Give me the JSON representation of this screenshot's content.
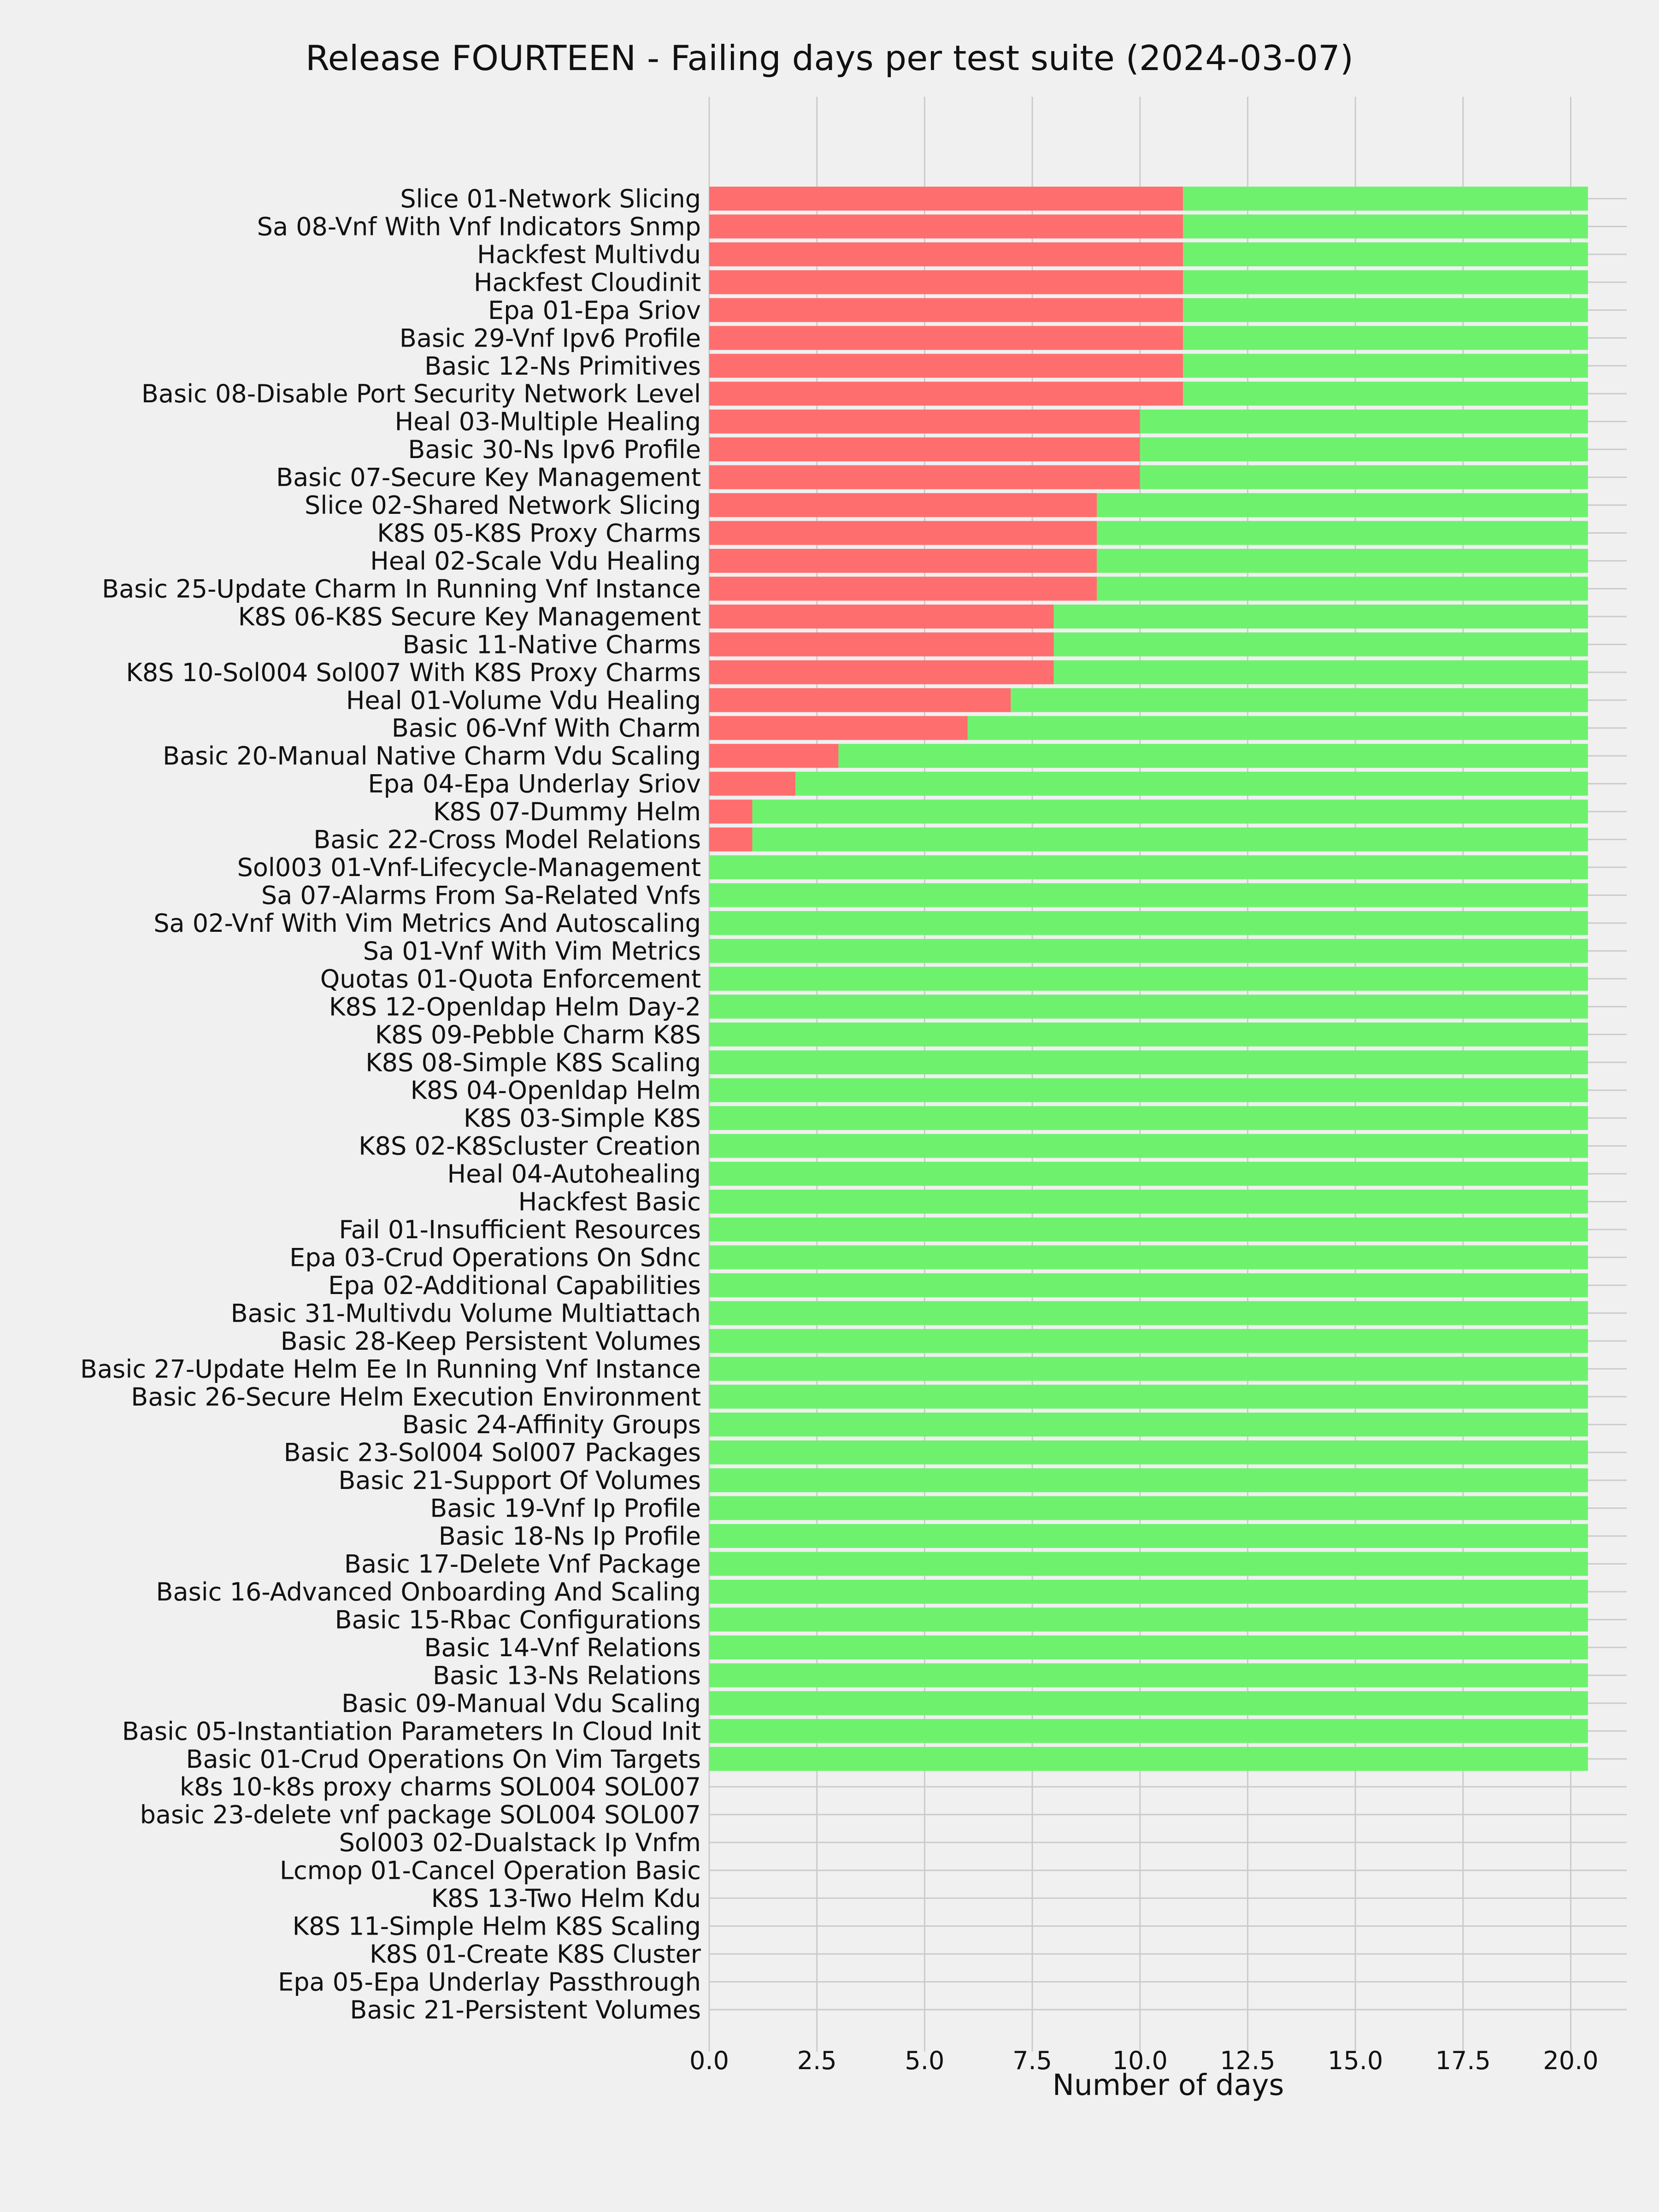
{
  "chart_data": {
    "type": "bar",
    "orientation": "horizontal",
    "stacked": true,
    "title": "Release FOURTEEN - Failing days per test suite (2024-03-07)",
    "xlabel": "Number of days",
    "ylabel": "",
    "xlim": [
      0,
      21.3
    ],
    "xticks": [
      "0.0",
      "2.5",
      "5.0",
      "7.5",
      "10.0",
      "12.5",
      "15.0",
      "17.5",
      "20.0"
    ],
    "grid": true,
    "legend": "none",
    "categories": [
      "Slice 01-Network Slicing",
      "Sa 08-Vnf With Vnf Indicators Snmp",
      "Hackfest Multivdu",
      "Hackfest Cloudinit",
      "Epa 01-Epa Sriov",
      "Basic 29-Vnf Ipv6 Profile",
      "Basic 12-Ns Primitives",
      "Basic 08-Disable Port Security Network Level",
      "Heal 03-Multiple Healing",
      "Basic 30-Ns Ipv6 Profile",
      "Basic 07-Secure Key Management",
      "Slice 02-Shared Network Slicing",
      "K8S 05-K8S Proxy Charms",
      "Heal 02-Scale Vdu Healing",
      "Basic 25-Update Charm In Running Vnf Instance",
      "K8S 06-K8S Secure Key Management",
      "Basic 11-Native Charms",
      "K8S 10-Sol004 Sol007 With K8S Proxy Charms",
      "Heal 01-Volume Vdu Healing",
      "Basic 06-Vnf With Charm",
      "Basic 20-Manual Native Charm Vdu Scaling",
      "Epa 04-Epa Underlay Sriov",
      "K8S 07-Dummy Helm",
      "Basic 22-Cross Model Relations",
      "Sol003 01-Vnf-Lifecycle-Management",
      "Sa 07-Alarms From Sa-Related Vnfs",
      "Sa 02-Vnf With Vim Metrics And Autoscaling",
      "Sa 01-Vnf With Vim Metrics",
      "Quotas 01-Quota Enforcement",
      "K8S 12-Openldap Helm Day-2",
      "K8S 09-Pebble Charm K8S",
      "K8S 08-Simple K8S Scaling",
      "K8S 04-Openldap Helm",
      "K8S 03-Simple K8S",
      "K8S 02-K8Scluster Creation",
      "Heal 04-Autohealing",
      "Hackfest Basic",
      "Fail 01-Insufficient Resources",
      "Epa 03-Crud Operations On Sdnc",
      "Epa 02-Additional Capabilities",
      "Basic 31-Multivdu Volume Multiattach",
      "Basic 28-Keep Persistent Volumes",
      "Basic 27-Update Helm Ee In Running Vnf Instance",
      "Basic 26-Secure Helm Execution Environment",
      "Basic 24-Affinity Groups",
      "Basic 23-Sol004 Sol007 Packages",
      "Basic 21-Support Of Volumes",
      "Basic 19-Vnf Ip Profile",
      "Basic 18-Ns Ip Profile",
      "Basic 17-Delete Vnf Package",
      "Basic 16-Advanced Onboarding And Scaling",
      "Basic 15-Rbac Configurations",
      "Basic 14-Vnf Relations",
      "Basic 13-Ns Relations",
      "Basic 09-Manual Vdu Scaling",
      "Basic 05-Instantiation Parameters In Cloud Init",
      "Basic 01-Crud Operations On Vim Targets",
      "k8s 10-k8s proxy charms SOL004 SOL007",
      "basic 23-delete vnf package SOL004 SOL007",
      "Sol003 02-Dualstack Ip Vnfm",
      "Lcmop 01-Cancel Operation Basic",
      "K8S 13-Two Helm Kdu",
      "K8S 11-Simple Helm K8S Scaling",
      "K8S 01-Create K8S Cluster",
      "Epa 05-Epa Underlay Passthrough",
      "Basic 21-Persistent Volumes"
    ],
    "series": [
      {
        "color": "#ff6e6e",
        "values": [
          11,
          11,
          11,
          11,
          11,
          11,
          11,
          11,
          10,
          10,
          10,
          9,
          9,
          9,
          9,
          8,
          8,
          8,
          7,
          6,
          3,
          2,
          1,
          1,
          0,
          0,
          0,
          0,
          0,
          0,
          0,
          0,
          0,
          0,
          0,
          0,
          0,
          0,
          0,
          0,
          0,
          0,
          0,
          0,
          0,
          0,
          0,
          0,
          0,
          0,
          0,
          0,
          0,
          0,
          0,
          0,
          0,
          0,
          0,
          0,
          0,
          0,
          0,
          0,
          0,
          0
        ]
      },
      {
        "color": "#6ef26e",
        "values": [
          9.4,
          9.4,
          9.4,
          9.4,
          9.4,
          9.4,
          9.4,
          9.4,
          10.4,
          10.4,
          10.4,
          11.4,
          11.4,
          11.4,
          11.4,
          12.4,
          12.4,
          12.4,
          13.4,
          14.4,
          17.4,
          18.4,
          19.4,
          19.4,
          20.4,
          20.4,
          20.4,
          20.4,
          20.4,
          20.4,
          20.4,
          20.4,
          20.4,
          20.4,
          20.4,
          20.4,
          20.4,
          20.4,
          20.4,
          20.4,
          20.4,
          20.4,
          20.4,
          20.4,
          20.4,
          20.4,
          20.4,
          20.4,
          20.4,
          20.4,
          20.4,
          20.4,
          20.4,
          20.4,
          20.4,
          20.4,
          20.4,
          0,
          0,
          0,
          0,
          0,
          0,
          0,
          0,
          0
        ]
      }
    ]
  },
  "colors": {
    "background": "#f0f0f0",
    "grid": "#cbcbcb",
    "text": "#111111"
  }
}
